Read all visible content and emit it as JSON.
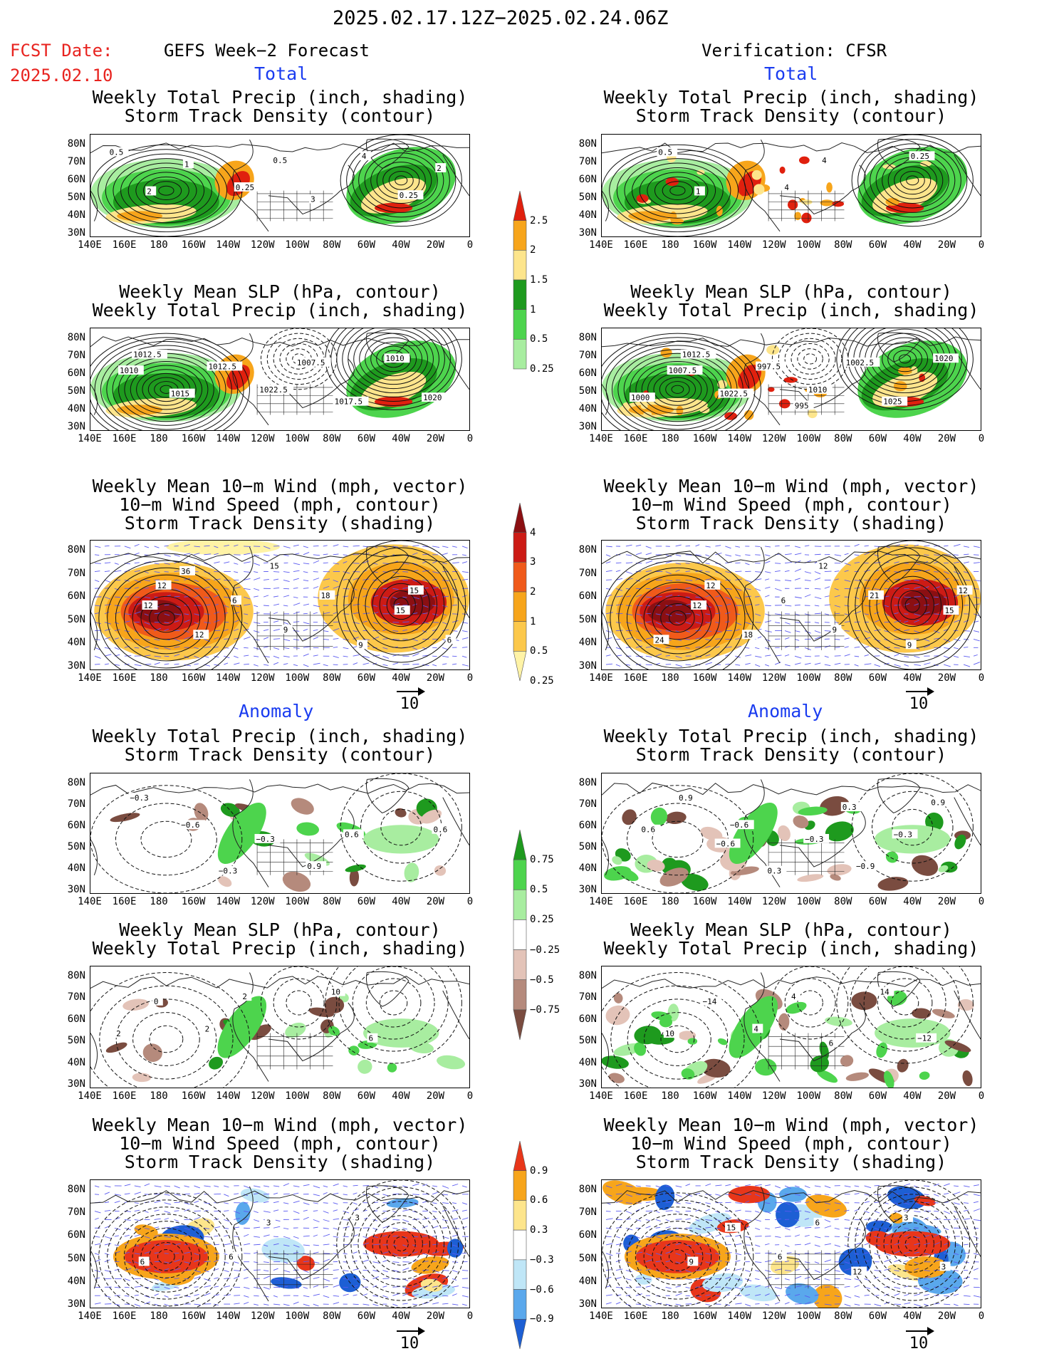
{
  "header": {
    "date_range": "2025.02.17.12Z−2025.02.24.06Z",
    "fcst_date_label": "FCST Date:",
    "fcst_date_value": "2025.02.10",
    "left_title": "GEFS Week−2 Forecast",
    "right_title": "Verification: CFSR"
  },
  "sections": {
    "total": "Total",
    "anomaly": "Anomaly"
  },
  "panel_titles": {
    "precip_track": [
      "Weekly Total Precip (inch, shading)",
      "Storm Track Density (contour)"
    ],
    "slp_precip": [
      "Weekly Mean SLP (hPa, contour)",
      "Weekly Total Precip (inch, shading)"
    ],
    "wind": [
      "Weekly Mean 10−m Wind (mph, vector)",
      "10−m Wind Speed (mph, contour)",
      "Storm Track Density (shading)"
    ]
  },
  "axes": {
    "lat_labels": [
      "80N",
      "70N",
      "60N",
      "50N",
      "40N",
      "30N"
    ],
    "lon_labels": [
      "140E",
      "160E",
      "180",
      "160W",
      "140W",
      "120W",
      "100W",
      "80W",
      "60W",
      "40W",
      "20W",
      "0"
    ]
  },
  "vector_reference": "10",
  "colorbars": {
    "precip_total": {
      "labels": [
        "2.5",
        "2",
        "1.5",
        "1",
        "0.5",
        "0.25"
      ],
      "colors": [
        "#e0200e",
        "#f7a51b",
        "#fde58c",
        "#1e9a1e",
        "#4dd44d",
        "#a8eda0"
      ]
    },
    "track_total": {
      "labels": [
        "4",
        "3",
        "2",
        "1",
        "0.5",
        "0.25"
      ],
      "colors": [
        "#8b0f12",
        "#cc1b15",
        "#f05a1a",
        "#f7a51b",
        "#fcc84b",
        "#fff3a6"
      ]
    },
    "precip_anom": {
      "labels": [
        "0.75",
        "0.5",
        "0.25",
        "−0.25",
        "−0.5",
        "−0.75"
      ],
      "colors": [
        "#1e9a1e",
        "#4dd44d",
        "#a8eda0",
        "#ffffff",
        "#e3c3b8",
        "#b58a7c",
        "#7a4c40"
      ]
    },
    "track_anom": {
      "labels": [
        "0.9",
        "0.6",
        "0.3",
        "−0.3",
        "−0.6",
        "−0.9"
      ],
      "colors": [
        "#e8361a",
        "#f7a51b",
        "#fde58c",
        "#ffffff",
        "#bfe6f7",
        "#5aa8ec",
        "#1d5fd4"
      ]
    }
  },
  "map_labels": {
    "fc_total_precip": [
      "0.5",
      "0.25",
      "4",
      "2",
      "0.5",
      "0.25",
      "1",
      "3",
      "2"
    ],
    "fc_total_slp": [
      "1012.5",
      "1022.5",
      "1010",
      "1015",
      "1007.5",
      "1020",
      "1012.5",
      "1017.5",
      "1010"
    ],
    "fc_total_wind": [
      "12",
      "9",
      "15",
      "12",
      "18",
      "6",
      "6",
      "9",
      "12",
      "15",
      "15",
      "36"
    ],
    "fc_anom_precip": [
      "−0.6",
      "0.9",
      "0.6",
      "−0.3",
      "0.6",
      "−0.3",
      "−0.3"
    ],
    "fc_anom_slp": [
      "2",
      "10",
      "2",
      "2",
      "6",
      "0"
    ],
    "fc_anom_wind": [
      "6",
      "3",
      "6",
      "3"
    ],
    "ob_total_precip": [
      "0.5",
      "4",
      "0.25",
      "1",
      "4"
    ],
    "ob_total_slp": [
      "1012.5",
      "1010",
      "1020",
      "1022.5",
      "1002.5",
      "1000",
      "997.5",
      "1025",
      "1007.5",
      "995"
    ],
    "ob_total_wind": [
      "12",
      "9",
      "12",
      "18",
      "21",
      "24",
      "6",
      "9",
      "12",
      "12",
      "15"
    ],
    "ob_anom_precip": [
      "−0.6",
      "−0.9",
      "0.6",
      "0.3",
      "−0.3",
      "0.9",
      "−0.3",
      "0.9",
      "−0.6",
      "0.3"
    ],
    "ob_anom_slp": [
      "4",
      "14",
      "10",
      "4",
      "−12",
      "−14",
      "6"
    ],
    "ob_anom_wind": [
      "6",
      "3",
      "9",
      "6",
      "3",
      "15",
      "12"
    ]
  }
}
